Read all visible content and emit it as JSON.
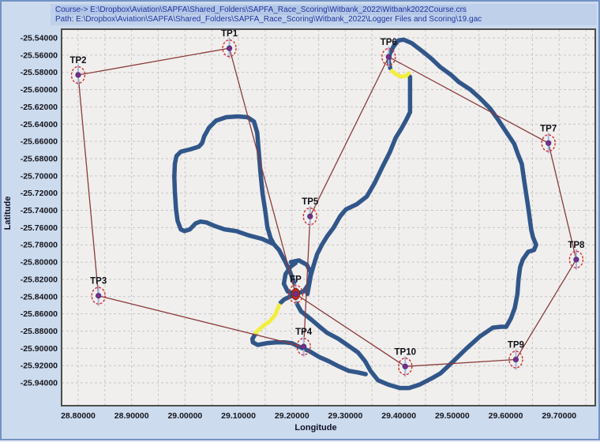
{
  "header": {
    "course_line": "Course-> E:\\Dropbox\\Aviation\\SAPFA\\Shared_Folders\\SAPFA_Race_Scoring\\Witbank_2022\\Witbank2022Course.crs",
    "path_line": "Path: E:\\Dropbox\\Aviation\\SAPFA\\Shared_Folders\\SAPFA_Race_Scoring\\Witbank_2022\\Logger Files and Scoring\\19.gac"
  },
  "colors": {
    "window_bg": "#ccdbee",
    "plot_bg": "#f0efed",
    "grid": "#c6c6c6",
    "track": "#31568a",
    "track_highlight": "#f2ee3e",
    "course_line": "#8a3b3b",
    "marker_ring": "#d03030",
    "marker_dot": "#7d2a8d",
    "marker_tick": "#a9b2e4",
    "fp_fill": "#c03020",
    "tick_text": "#15151c",
    "header_text": "#1f35a0"
  },
  "chart_data": {
    "type": "line",
    "title": "",
    "xlabel": "Longitude",
    "ylabel": "Latitude",
    "xlim": [
      28.769,
      29.7676
    ],
    "ylim": [
      -25.9665,
      -25.5299
    ],
    "grid": "dashed",
    "x_grid_step": 0.05,
    "y_grid_step": 0.02,
    "x_ticks": [
      "28.80000",
      "28.90000",
      "29.00000",
      "29.10000",
      "29.20000",
      "29.30000",
      "29.40000",
      "29.50000",
      "29.60000",
      "29.70000"
    ],
    "y_ticks": [
      "-25.54000",
      "-25.56000",
      "-25.58000",
      "-25.60000",
      "-25.62000",
      "-25.64000",
      "-25.66000",
      "-25.68000",
      "-25.70000",
      "-25.72000",
      "-25.74000",
      "-25.76000",
      "-25.78000",
      "-25.80000",
      "-25.82000",
      "-25.84000",
      "-25.86000",
      "-25.88000",
      "-25.90000",
      "-25.92000",
      "-25.94000"
    ],
    "turnpoints": [
      {
        "name": "TP1",
        "lon": 29.083,
        "lat": -25.552
      },
      {
        "name": "TP2",
        "lon": 28.8,
        "lat": -25.583
      },
      {
        "name": "TP3",
        "lon": 28.838,
        "lat": -25.839
      },
      {
        "name": "TP4",
        "lon": 29.222,
        "lat": -25.898
      },
      {
        "name": "TP5",
        "lon": 29.234,
        "lat": -25.747
      },
      {
        "name": "TP6",
        "lon": 29.381,
        "lat": -25.562
      },
      {
        "name": "TP7",
        "lon": 29.68,
        "lat": -25.662
      },
      {
        "name": "TP8",
        "lon": 29.732,
        "lat": -25.797
      },
      {
        "name": "TP9",
        "lon": 29.619,
        "lat": -25.913
      },
      {
        "name": "TP10",
        "lon": 29.412,
        "lat": -25.921
      },
      {
        "name": "FP",
        "lon": 29.207,
        "lat": -25.837,
        "is_finish": true
      }
    ],
    "course_sequence": [
      "FP",
      "TP1",
      "TP2",
      "TP3",
      "TP4",
      "TP5",
      "TP6",
      "TP7",
      "TP8",
      "TP9",
      "TP10",
      "FP"
    ],
    "track": {
      "segments": [
        [
          [
            29.204,
            -25.824
          ],
          [
            29.197,
            -25.812
          ],
          [
            29.188,
            -25.8
          ],
          [
            29.176,
            -25.786
          ],
          [
            29.166,
            -25.779
          ],
          [
            29.144,
            -25.773
          ],
          [
            29.119,
            -25.769
          ],
          [
            29.096,
            -25.764
          ],
          [
            29.074,
            -25.762
          ],
          [
            29.055,
            -25.758
          ],
          [
            29.04,
            -25.754
          ],
          [
            29.029,
            -25.753
          ],
          [
            29.02,
            -25.755
          ],
          [
            29.009,
            -25.762
          ],
          [
            28.999,
            -25.764
          ],
          [
            28.992,
            -25.762
          ],
          [
            28.986,
            -25.752
          ],
          [
            28.983,
            -25.738
          ],
          [
            28.981,
            -25.718
          ],
          [
            28.98,
            -25.701
          ],
          [
            28.981,
            -25.686
          ],
          [
            28.984,
            -25.677
          ],
          [
            28.992,
            -25.672
          ],
          [
            29.011,
            -25.669
          ],
          [
            29.026,
            -25.666
          ],
          [
            29.032,
            -25.662
          ],
          [
            29.036,
            -25.654
          ],
          [
            29.045,
            -25.644
          ],
          [
            29.058,
            -25.636
          ],
          [
            29.077,
            -25.632
          ],
          [
            29.099,
            -25.631
          ],
          [
            29.117,
            -25.632
          ],
          [
            29.129,
            -25.637
          ],
          [
            29.135,
            -25.65
          ],
          [
            29.138,
            -25.672
          ],
          [
            29.141,
            -25.695
          ],
          [
            29.145,
            -25.72
          ],
          [
            29.15,
            -25.74
          ],
          [
            29.154,
            -25.759
          ],
          [
            29.16,
            -25.772
          ],
          [
            29.166,
            -25.779
          ]
        ],
        [
          [
            29.198,
            -25.8
          ],
          [
            29.213,
            -25.798
          ],
          [
            29.228,
            -25.803
          ],
          [
            29.235,
            -25.812
          ],
          [
            29.232,
            -25.825
          ],
          [
            29.222,
            -25.834
          ],
          [
            29.207,
            -25.837
          ],
          [
            29.192,
            -25.834
          ],
          [
            29.185,
            -25.825
          ],
          [
            29.188,
            -25.814
          ],
          [
            29.198,
            -25.805
          ],
          [
            29.207,
            -25.801
          ]
        ],
        [
          [
            29.209,
            -25.848
          ],
          [
            29.217,
            -25.857
          ],
          [
            29.237,
            -25.867
          ],
          [
            29.254,
            -25.876
          ],
          [
            29.266,
            -25.882
          ],
          [
            29.287,
            -25.889
          ],
          [
            29.306,
            -25.897
          ],
          [
            29.324,
            -25.905
          ],
          [
            29.337,
            -25.915
          ],
          [
            29.347,
            -25.926
          ],
          [
            29.361,
            -25.937
          ],
          [
            29.38,
            -25.942
          ],
          [
            29.402,
            -25.946
          ],
          [
            29.419,
            -25.946
          ],
          [
            29.439,
            -25.942
          ],
          [
            29.461,
            -25.935
          ],
          [
            29.478,
            -25.929
          ],
          [
            29.502,
            -25.915
          ],
          [
            29.527,
            -25.9
          ],
          [
            29.552,
            -25.886
          ],
          [
            29.576,
            -25.876
          ],
          [
            29.591,
            -25.875
          ],
          [
            29.601,
            -25.875
          ],
          [
            29.61,
            -25.865
          ],
          [
            29.617,
            -25.853
          ],
          [
            29.622,
            -25.837
          ],
          [
            29.624,
            -25.82
          ],
          [
            29.627,
            -25.806
          ],
          [
            29.632,
            -25.797
          ],
          [
            29.642,
            -25.788
          ],
          [
            29.653,
            -25.786
          ],
          [
            29.657,
            -25.78
          ],
          [
            29.651,
            -25.771
          ],
          [
            29.648,
            -25.763
          ],
          [
            29.642,
            -25.736
          ],
          [
            29.635,
            -25.707
          ],
          [
            29.63,
            -25.686
          ],
          [
            29.623,
            -25.675
          ],
          [
            29.616,
            -25.663
          ],
          [
            29.601,
            -25.649
          ],
          [
            29.586,
            -25.635
          ],
          [
            29.571,
            -25.622
          ],
          [
            29.552,
            -25.61
          ],
          [
            29.534,
            -25.6
          ],
          [
            29.512,
            -25.591
          ],
          [
            29.498,
            -25.583
          ],
          [
            29.478,
            -25.574
          ],
          [
            29.461,
            -25.564
          ],
          [
            29.443,
            -25.555
          ],
          [
            29.424,
            -25.546
          ],
          [
            29.409,
            -25.542
          ],
          [
            29.399,
            -25.543
          ],
          [
            29.39,
            -25.55
          ],
          [
            29.383,
            -25.559
          ],
          [
            29.381,
            -25.567
          ],
          [
            29.384,
            -25.575
          ]
        ],
        [
          [
            29.421,
            -25.585
          ],
          [
            29.421,
            -25.6
          ],
          [
            29.421,
            -25.615
          ],
          [
            29.421,
            -25.626
          ],
          [
            29.414,
            -25.635
          ],
          [
            29.405,
            -25.645
          ],
          [
            29.394,
            -25.656
          ],
          [
            29.383,
            -25.673
          ],
          [
            29.369,
            -25.69
          ],
          [
            29.355,
            -25.708
          ],
          [
            29.34,
            -25.724
          ],
          [
            29.321,
            -25.733
          ],
          [
            29.301,
            -25.739
          ],
          [
            29.29,
            -25.747
          ],
          [
            29.278,
            -25.76
          ],
          [
            29.266,
            -25.77
          ],
          [
            29.256,
            -25.78
          ],
          [
            29.247,
            -25.791
          ],
          [
            29.241,
            -25.803
          ],
          [
            29.235,
            -25.816
          ],
          [
            29.232,
            -25.827
          ],
          [
            29.229,
            -25.837
          ]
        ],
        [
          [
            29.207,
            -25.838
          ],
          [
            29.197,
            -25.84
          ],
          [
            29.186,
            -25.843
          ],
          [
            29.179,
            -25.847
          ]
        ],
        [
          [
            29.132,
            -25.883
          ],
          [
            29.126,
            -25.889
          ],
          [
            29.127,
            -25.893
          ],
          [
            29.136,
            -25.896
          ],
          [
            29.153,
            -25.894
          ],
          [
            29.17,
            -25.893
          ],
          [
            29.186,
            -25.893
          ],
          [
            29.2,
            -25.894
          ],
          [
            29.213,
            -25.898
          ],
          [
            29.232,
            -25.903
          ],
          [
            29.251,
            -25.91
          ],
          [
            29.269,
            -25.915
          ],
          [
            29.288,
            -25.921
          ],
          [
            29.306,
            -25.926
          ],
          [
            29.324,
            -25.928
          ],
          [
            29.338,
            -25.93
          ]
        ]
      ],
      "highlights": [
        [
          [
            29.176,
            -25.85
          ],
          [
            29.169,
            -25.861
          ],
          [
            29.158,
            -25.869
          ],
          [
            29.148,
            -25.873
          ],
          [
            29.139,
            -25.878
          ],
          [
            29.132,
            -25.882
          ]
        ],
        [
          [
            29.387,
            -25.578
          ],
          [
            29.394,
            -25.582
          ],
          [
            29.405,
            -25.585
          ],
          [
            29.414,
            -25.584
          ],
          [
            29.419,
            -25.581
          ]
        ]
      ]
    }
  }
}
